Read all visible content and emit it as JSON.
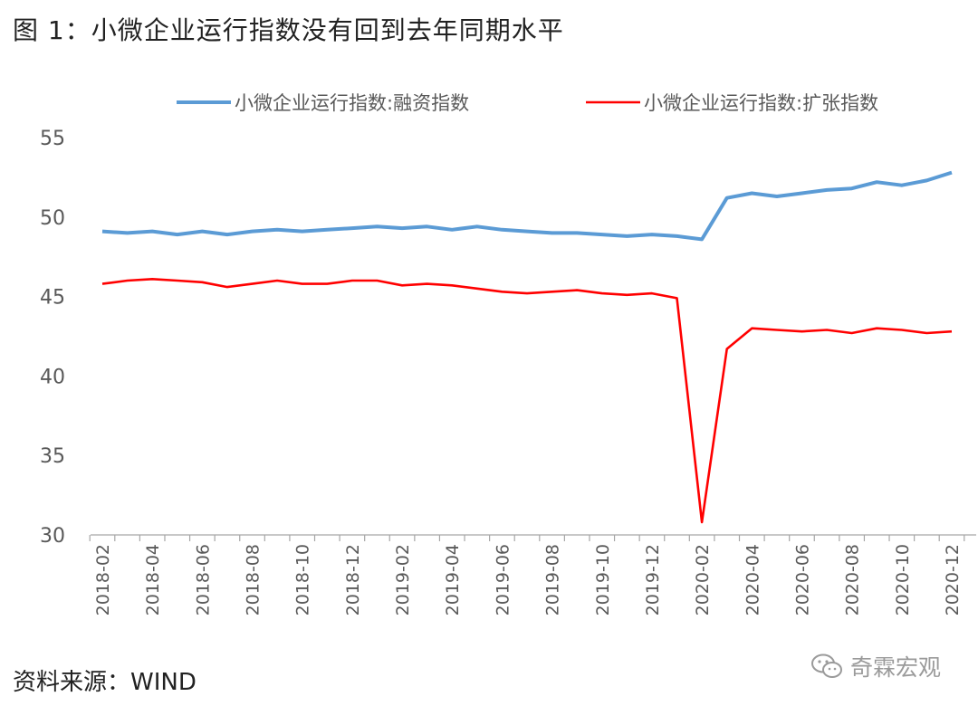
{
  "title": "图 1：小微企业运行指数没有回到去年同期水平",
  "source": "资料来源：WIND",
  "watermark": "奇霖宏观",
  "chart_data": {
    "type": "line",
    "title": "",
    "xlabel": "",
    "ylabel": "",
    "ylim": [
      30,
      55
    ],
    "yticks": [
      30,
      35,
      40,
      45,
      50,
      55
    ],
    "grid": false,
    "legend_position": "top",
    "x": [
      "2018-02",
      "2018-03",
      "2018-04",
      "2018-05",
      "2018-06",
      "2018-07",
      "2018-08",
      "2018-09",
      "2018-10",
      "2018-11",
      "2018-12",
      "2019-01",
      "2019-02",
      "2019-03",
      "2019-04",
      "2019-05",
      "2019-06",
      "2019-07",
      "2019-08",
      "2019-09",
      "2019-10",
      "2019-11",
      "2019-12",
      "2020-01",
      "2020-02",
      "2020-03",
      "2020-04",
      "2020-05",
      "2020-06",
      "2020-07",
      "2020-08",
      "2020-09",
      "2020-10",
      "2020-11",
      "2020-12"
    ],
    "xtick_labels": [
      "2018-02",
      "2018-04",
      "2018-06",
      "2018-08",
      "2018-10",
      "2018-12",
      "2019-02",
      "2019-04",
      "2019-06",
      "2019-08",
      "2019-10",
      "2019-12",
      "2020-02",
      "2020-04",
      "2020-06",
      "2020-08",
      "2020-10",
      "2020-12"
    ],
    "series": [
      {
        "name": "小微企业运行指数:融资指数",
        "color": "#5B9BD5",
        "values": [
          49.1,
          49.0,
          49.1,
          48.9,
          49.1,
          48.9,
          49.1,
          49.2,
          49.1,
          49.2,
          49.3,
          49.4,
          49.3,
          49.4,
          49.2,
          49.4,
          49.2,
          49.1,
          49.0,
          49.0,
          48.9,
          48.8,
          48.9,
          48.8,
          48.6,
          51.2,
          51.5,
          51.3,
          51.5,
          51.7,
          51.8,
          52.2,
          52.0,
          52.3,
          52.8
        ]
      },
      {
        "name": "小微企业运行指数:扩张指数",
        "color": "#FF0000",
        "values": [
          45.8,
          46.0,
          46.1,
          46.0,
          45.9,
          45.6,
          45.8,
          46.0,
          45.8,
          45.8,
          46.0,
          46.0,
          45.7,
          45.8,
          45.7,
          45.5,
          45.3,
          45.2,
          45.3,
          45.4,
          45.2,
          45.1,
          45.2,
          44.9,
          30.8,
          41.7,
          43.0,
          42.9,
          42.8,
          42.9,
          42.7,
          43.0,
          42.9,
          42.7,
          42.8
        ]
      }
    ]
  }
}
